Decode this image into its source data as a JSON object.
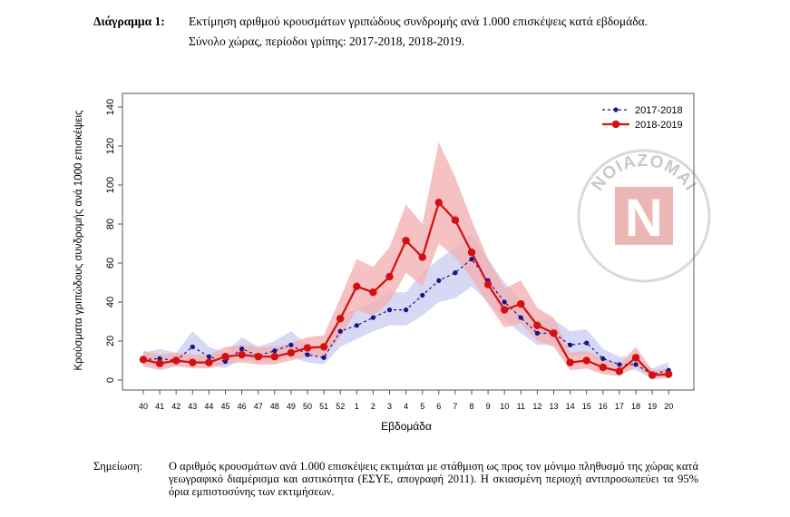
{
  "caption": {
    "label": "Διάγραμμα 1:",
    "line1": "Εκτίμηση αριθμού κρουσμάτων γριπώδους συνδρομής ανά 1.000 επισκέψεις κατά εβδομάδα.",
    "line2": "Σύνολο χώρας, περίοδοι γρίπης:  2017-2018, 2018-2019."
  },
  "note": {
    "label": "Σημείωση:",
    "text": "Ο αριθμός κρουσμάτων ανά 1.000 επισκέψεις εκτιμάται με στάθμιση ως προς τον μόνιμο πληθυσμό της χώρας κατά γεωγραφικό διαμέρισμα και αστικότητα (ΕΣΥΕ, απογραφή 2011). Η σκιασμένη περιοχή αντιπροσωπεύει τα 95% όρια εμπιστοσύνης των εκτιμήσεων."
  },
  "watermark": {
    "top_text": "ΝΟΙΑΖΟΜΑΙ",
    "letter": "N",
    "colors": {
      "red": "#e8aaa8",
      "gray": "#c9c9c9"
    }
  },
  "chart_data": {
    "type": "line",
    "xlabel": "Εβδομάδα",
    "ylabel": "Κρούσματα γριπώδους συνδρομής ανά 1000 επισκέψεις",
    "ylim": [
      0,
      140
    ],
    "yticks": [
      0,
      20,
      40,
      60,
      80,
      100,
      120,
      140
    ],
    "grid": false,
    "legend_position": "top-right",
    "categories": [
      "40",
      "41",
      "42",
      "43",
      "44",
      "45",
      "46",
      "47",
      "48",
      "49",
      "50",
      "51",
      "52",
      "1",
      "2",
      "3",
      "4",
      "5",
      "6",
      "7",
      "8",
      "9",
      "10",
      "11",
      "12",
      "13",
      "14",
      "15",
      "16",
      "17",
      "18",
      "19",
      "20"
    ],
    "series": [
      {
        "name": "2017-2018",
        "style": "dashed",
        "color": "#14148c",
        "band_color": "#c9cbf0",
        "values": [
          10.5,
          11,
          10,
          17,
          12,
          9.5,
          16,
          12.5,
          15,
          18,
          13,
          11.5,
          25,
          28,
          32,
          36,
          36,
          43.5,
          51,
          55,
          62,
          51,
          40,
          32,
          24,
          24,
          18,
          19,
          11,
          8,
          8,
          3,
          5
        ],
        "lower": [
          7,
          7,
          7,
          11,
          8,
          6,
          11,
          9,
          10,
          12,
          9,
          8,
          17,
          21,
          25,
          28,
          28,
          33,
          40,
          42,
          48,
          40,
          31,
          24,
          18,
          18,
          12,
          13,
          7,
          5,
          5,
          1,
          2
        ],
        "upper": [
          14,
          16,
          14,
          25,
          17,
          14,
          22,
          17,
          20,
          25,
          18,
          16,
          34,
          36,
          40,
          45,
          45,
          55,
          62,
          68,
          75,
          62,
          50,
          41,
          31,
          31,
          25,
          26,
          16,
          12,
          12,
          6,
          9
        ]
      },
      {
        "name": "2018-2019",
        "style": "solid",
        "color": "#d40f0f",
        "band_color": "#f2b2b4",
        "values": [
          10.5,
          8.5,
          10,
          9,
          9,
          12,
          13,
          12,
          12,
          14,
          16.5,
          17,
          31.5,
          48,
          45,
          53,
          71.5,
          63,
          91,
          82,
          65.5,
          49,
          36,
          39,
          28,
          24,
          9,
          10,
          6.5,
          4.5,
          11.5,
          2.5,
          3
        ],
        "lower": [
          7,
          5,
          7,
          6,
          6,
          8,
          9,
          8,
          8,
          10,
          12,
          12,
          22,
          36,
          33,
          40,
          55,
          48,
          70,
          63,
          52,
          39,
          27,
          29,
          20,
          17,
          5,
          6,
          3,
          2,
          7,
          0.5,
          1
        ],
        "upper": [
          15,
          13,
          14,
          13,
          13,
          17,
          18,
          17,
          17,
          19,
          22,
          23,
          42,
          62,
          58,
          68,
          90,
          80,
          122,
          104,
          82,
          62,
          47,
          51,
          37,
          32,
          14,
          15,
          11,
          8,
          17,
          5,
          6
        ]
      }
    ]
  }
}
